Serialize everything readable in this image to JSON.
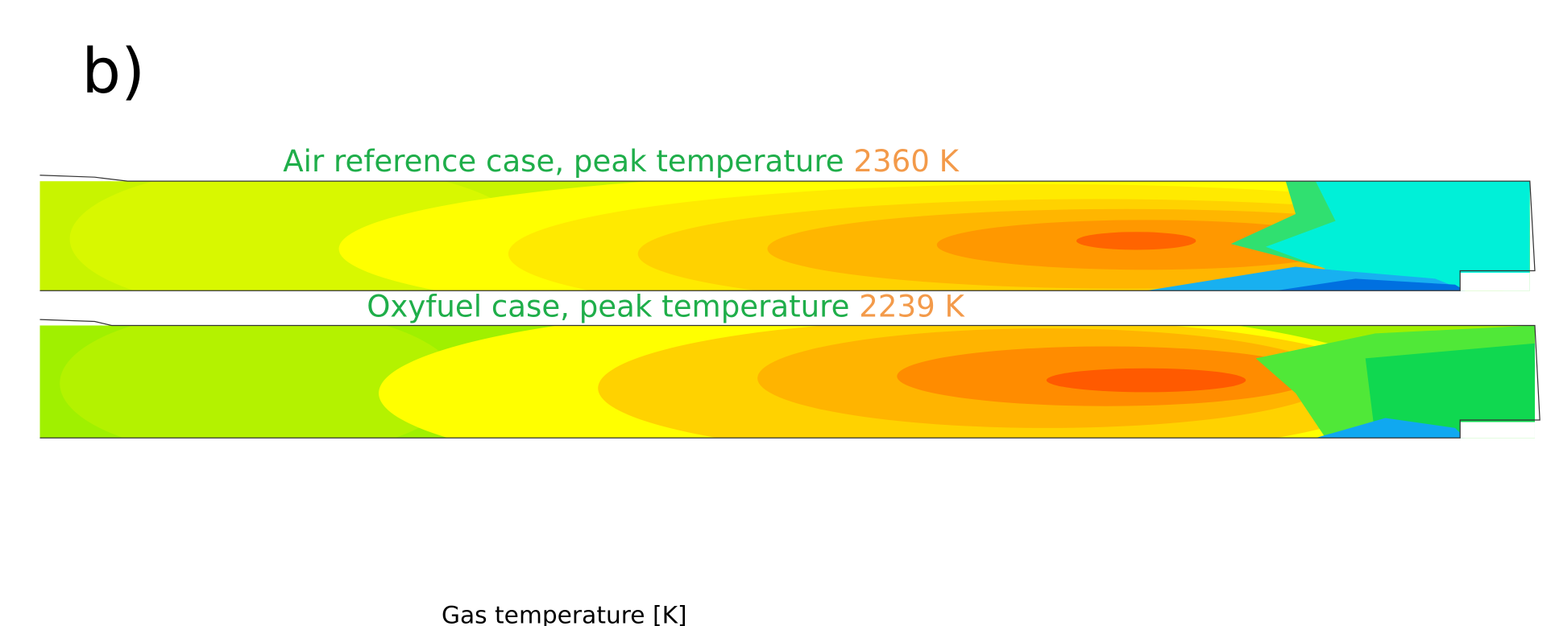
{
  "label": "b)",
  "panels": [
    {
      "title": "Air reference case, peak temperature",
      "peak": "2360 K"
    },
    {
      "title": "Oxyfuel case, peak temperature",
      "peak": "2239 K"
    }
  ],
  "legend_title": "Gas temperature [K]"
}
